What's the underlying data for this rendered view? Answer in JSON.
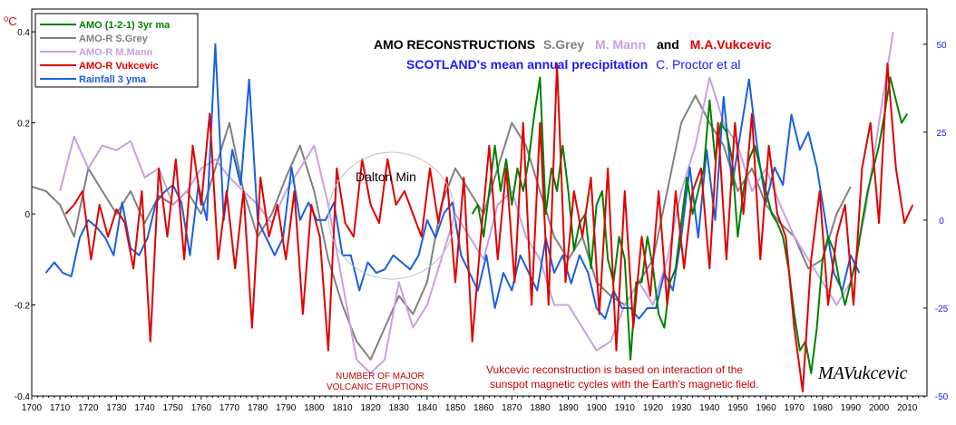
{
  "chart_data": {
    "type": "line",
    "title": {
      "parts": [
        {
          "text": "AMO RECONSTRUCTIONS",
          "color": "#000000"
        },
        {
          "text": "S.Grey",
          "color": "#808080"
        },
        {
          "text": "M. Mann",
          "color": "#c8a0e0"
        },
        {
          "text": "and",
          "color": "#000000"
        },
        {
          "text": "M.A.Vukcevic",
          "color": "#e00000"
        }
      ]
    },
    "subtitle": {
      "parts": [
        {
          "text": "SCOTLAND's mean annual precipitation",
          "color": "#1a1aff"
        },
        {
          "text": "C. Proctor et al",
          "color": "#1a1aff"
        }
      ]
    },
    "y_unit_label": "⁰C",
    "xlim": [
      1700,
      2017
    ],
    "ylim": [
      -0.4,
      0.45
    ],
    "ylim_right": [
      -50,
      60
    ],
    "x_ticks": [
      1700,
      1710,
      1720,
      1730,
      1740,
      1750,
      1760,
      1770,
      1780,
      1790,
      1800,
      1810,
      1820,
      1830,
      1840,
      1850,
      1860,
      1870,
      1880,
      1890,
      1900,
      1910,
      1920,
      1930,
      1940,
      1950,
      1960,
      1970,
      1980,
      1990,
      2000,
      2010
    ],
    "y_ticks": [
      -0.4,
      -0.2,
      0,
      0.2,
      0.4
    ],
    "y_tick_labels": [
      "-0.4",
      "-0.2",
      "0",
      "0.2",
      "0.4"
    ],
    "y_right_ticks": [
      -50,
      -25,
      0,
      25,
      50
    ],
    "y_right_tick_labels": [
      "-50",
      "-25",
      "0",
      "25",
      "50"
    ],
    "grid": false,
    "legend_position": "top-left",
    "series": [
      {
        "name": "AMO  (1-2-1) 3yr ma",
        "color": "#008000",
        "axis": "left",
        "x": [
          1856,
          1858,
          1860,
          1862,
          1864,
          1866,
          1868,
          1870,
          1872,
          1874,
          1876,
          1878,
          1880,
          1882,
          1884,
          1886,
          1888,
          1890,
          1892,
          1894,
          1896,
          1898,
          1900,
          1902,
          1904,
          1906,
          1908,
          1910,
          1912,
          1914,
          1916,
          1918,
          1920,
          1922,
          1924,
          1926,
          1928,
          1930,
          1932,
          1934,
          1936,
          1938,
          1940,
          1942,
          1944,
          1946,
          1948,
          1950,
          1952,
          1954,
          1956,
          1958,
          1960,
          1962,
          1964,
          1966,
          1968,
          1970,
          1972,
          1974,
          1976,
          1978,
          1980,
          1982,
          1984,
          1986,
          1988,
          1990,
          1992,
          1994,
          1996,
          1998,
          2000,
          2002,
          2004,
          2006,
          2008,
          2010
        ],
        "values": [
          0.0,
          0.02,
          -0.05,
          0.05,
          0.15,
          0.05,
          0.12,
          0.02,
          0.1,
          0.05,
          0.12,
          0.22,
          0.3,
          0.0,
          0.1,
          0.05,
          0.15,
          0.05,
          -0.08,
          -0.02,
          0.0,
          -0.12,
          0.02,
          0.05,
          -0.1,
          -0.15,
          -0.05,
          -0.1,
          -0.32,
          -0.15,
          -0.15,
          -0.05,
          -0.12,
          -0.22,
          -0.25,
          -0.15,
          -0.12,
          -0.02,
          0.08,
          0.0,
          0.05,
          0.1,
          0.25,
          0.12,
          0.2,
          0.18,
          0.12,
          -0.05,
          0.05,
          0.12,
          0.15,
          0.1,
          0.05,
          0.0,
          -0.02,
          -0.05,
          -0.12,
          -0.22,
          -0.3,
          -0.28,
          -0.35,
          -0.25,
          -0.1,
          -0.05,
          -0.08,
          -0.15,
          -0.2,
          -0.15,
          -0.1,
          -0.02,
          0.05,
          0.1,
          0.15,
          0.22,
          0.3,
          0.25,
          0.2,
          0.22
        ]
      },
      {
        "name": "AMO-R S.Grey",
        "color": "#808080",
        "axis": "left",
        "x": [
          1700,
          1705,
          1710,
          1715,
          1720,
          1725,
          1730,
          1735,
          1740,
          1745,
          1750,
          1755,
          1760,
          1765,
          1770,
          1775,
          1780,
          1785,
          1790,
          1795,
          1800,
          1805,
          1810,
          1815,
          1820,
          1825,
          1830,
          1835,
          1840,
          1845,
          1850,
          1855,
          1860,
          1865,
          1870,
          1875,
          1880,
          1885,
          1890,
          1895,
          1900,
          1905,
          1910,
          1915,
          1920,
          1925,
          1930,
          1935,
          1940,
          1945,
          1950,
          1955,
          1960,
          1965,
          1970,
          1975,
          1980,
          1985,
          1990
        ],
        "values": [
          0.06,
          0.05,
          0.02,
          -0.05,
          0.1,
          0.05,
          0.0,
          0.05,
          -0.02,
          0.04,
          0.02,
          0.05,
          0.0,
          0.1,
          0.2,
          0.05,
          -0.05,
          0.0,
          0.08,
          0.15,
          0.05,
          -0.1,
          -0.2,
          -0.28,
          -0.32,
          -0.25,
          -0.18,
          -0.22,
          -0.15,
          0.02,
          0.1,
          0.05,
          0.0,
          0.1,
          0.2,
          0.15,
          0.05,
          -0.05,
          -0.1,
          -0.05,
          -0.15,
          -0.18,
          -0.2,
          -0.15,
          -0.1,
          0.05,
          0.2,
          0.26,
          0.2,
          0.15,
          0.05,
          0.1,
          0.02,
          -0.02,
          -0.05,
          -0.12,
          -0.1,
          0.0,
          0.06
        ]
      },
      {
        "name": "AMO-R M.Mann",
        "color": "#c8a0e0",
        "axis": "left",
        "x": [
          1710,
          1715,
          1720,
          1725,
          1730,
          1735,
          1740,
          1745,
          1750,
          1755,
          1760,
          1765,
          1770,
          1775,
          1780,
          1785,
          1790,
          1795,
          1800,
          1805,
          1810,
          1815,
          1820,
          1825,
          1830,
          1835,
          1840,
          1845,
          1850,
          1855,
          1860,
          1865,
          1870,
          1875,
          1880,
          1885,
          1890,
          1895,
          1900,
          1905,
          1910,
          1915,
          1920,
          1925,
          1930,
          1935,
          1940,
          1945,
          1950,
          1955,
          1960,
          1965,
          1970,
          1975,
          1980,
          1985,
          1990,
          1995,
          2000,
          2005
        ],
        "values": [
          0.05,
          0.17,
          0.1,
          0.15,
          0.14,
          0.16,
          0.08,
          0.1,
          0.02,
          0.05,
          0.1,
          0.12,
          0.08,
          0.05,
          0.02,
          -0.02,
          0.05,
          0.1,
          0.15,
          0.02,
          -0.15,
          -0.32,
          -0.35,
          -0.32,
          -0.15,
          -0.25,
          -0.2,
          -0.1,
          0.0,
          -0.05,
          -0.1,
          0.02,
          0.05,
          -0.05,
          -0.1,
          -0.2,
          -0.2,
          -0.25,
          -0.3,
          -0.28,
          -0.2,
          -0.15,
          -0.2,
          -0.1,
          0.05,
          0.15,
          0.3,
          0.2,
          0.15,
          0.05,
          0.1,
          0.02,
          -0.05,
          -0.1,
          -0.15,
          -0.2,
          -0.15,
          0.0,
          0.2,
          0.4
        ]
      },
      {
        "name": "AMO-R Vukcevic",
        "color": "#e00000",
        "axis": "left",
        "x": [
          1712,
          1715,
          1718,
          1721,
          1724,
          1727,
          1730,
          1733,
          1736,
          1739,
          1742,
          1745,
          1748,
          1751,
          1754,
          1757,
          1760,
          1763,
          1766,
          1769,
          1772,
          1775,
          1778,
          1781,
          1784,
          1787,
          1790,
          1793,
          1796,
          1799,
          1802,
          1805,
          1808,
          1811,
          1814,
          1817,
          1820,
          1823,
          1826,
          1829,
          1832,
          1835,
          1838,
          1841,
          1844,
          1847,
          1850,
          1853,
          1856,
          1859,
          1862,
          1865,
          1868,
          1871,
          1874,
          1877,
          1880,
          1883,
          1886,
          1889,
          1892,
          1895,
          1898,
          1901,
          1904,
          1907,
          1910,
          1913,
          1916,
          1919,
          1922,
          1925,
          1928,
          1931,
          1934,
          1937,
          1940,
          1943,
          1946,
          1949,
          1952,
          1955,
          1958,
          1961,
          1964,
          1967,
          1970,
          1973,
          1976,
          1979,
          1982,
          1985,
          1988,
          1991,
          1994,
          1997,
          2000,
          2003,
          2006,
          2009,
          2012
        ],
        "values": [
          0.0,
          0.02,
          0.05,
          -0.1,
          0.02,
          -0.05,
          0.01,
          -0.02,
          -0.12,
          0.05,
          -0.28,
          0.1,
          -0.05,
          0.12,
          -0.1,
          0.15,
          0.02,
          0.22,
          -0.1,
          0.05,
          -0.12,
          0.05,
          -0.25,
          0.08,
          -0.05,
          0.02,
          -0.1,
          0.05,
          -0.22,
          0.02,
          -0.05,
          -0.3,
          0.1,
          -0.02,
          -0.05,
          0.12,
          0.02,
          -0.02,
          0.12,
          0.02,
          0.05,
          0.0,
          -0.05,
          0.1,
          -0.02,
          0.08,
          -0.15,
          0.08,
          -0.28,
          -0.05,
          0.15,
          -0.1,
          0.1,
          -0.15,
          0.2,
          -0.2,
          0.2,
          -0.2,
          0.33,
          -0.15,
          0.05,
          -0.05,
          0.08,
          -0.22,
          0.1,
          -0.3,
          0.05,
          -0.25,
          -0.05,
          -0.18,
          0.05,
          -0.2,
          0.05,
          -0.12,
          0.05,
          0.1,
          -0.12,
          0.2,
          -0.1,
          0.2,
          0.0,
          0.22,
          -0.1,
          0.15,
          0.0,
          -0.05,
          -0.25,
          -0.39,
          -0.1,
          0.05,
          -0.2,
          -0.05,
          0.02,
          -0.2,
          0.1,
          0.2,
          -0.02,
          0.33,
          0.1,
          -0.02,
          0.02
        ]
      },
      {
        "name": "Rainfall 3 yma",
        "color": "#1a5fe0",
        "axis": "right",
        "x": [
          1705,
          1708,
          1711,
          1714,
          1717,
          1720,
          1723,
          1726,
          1729,
          1732,
          1735,
          1738,
          1741,
          1744,
          1747,
          1750,
          1753,
          1756,
          1759,
          1762,
          1765,
          1768,
          1771,
          1774,
          1777,
          1780,
          1783,
          1786,
          1789,
          1792,
          1795,
          1798,
          1801,
          1804,
          1807,
          1810,
          1813,
          1816,
          1819,
          1822,
          1825,
          1828,
          1831,
          1834,
          1837,
          1840,
          1843,
          1846,
          1849,
          1852,
          1855,
          1858,
          1861,
          1864,
          1867,
          1870,
          1873,
          1876,
          1879,
          1882,
          1885,
          1888,
          1891,
          1894,
          1897,
          1900,
          1903,
          1906,
          1909,
          1912,
          1915,
          1918,
          1921,
          1924,
          1927,
          1930,
          1933,
          1936,
          1939,
          1942,
          1945,
          1948,
          1951,
          1954,
          1957,
          1960,
          1963,
          1966,
          1969,
          1972,
          1975,
          1978,
          1981,
          1984,
          1987,
          1990,
          1993
        ],
        "values": [
          -15,
          -12,
          -15,
          -16,
          -5,
          0,
          -2,
          -5,
          -10,
          5,
          -8,
          -10,
          -5,
          5,
          8,
          10,
          5,
          -10,
          10,
          0,
          50,
          0,
          20,
          10,
          40,
          0,
          -5,
          -10,
          -5,
          15,
          0,
          5,
          0,
          0,
          5,
          -10,
          -10,
          -20,
          -12,
          -15,
          -14,
          -10,
          -12,
          -14,
          -10,
          0,
          -5,
          2,
          5,
          -10,
          -15,
          -20,
          -10,
          -25,
          -15,
          -20,
          -10,
          -15,
          -20,
          -5,
          -15,
          -10,
          -18,
          -10,
          -15,
          -25,
          -28,
          -20,
          -25,
          -25,
          -28,
          -25,
          -25,
          -15,
          -20,
          -5,
          15,
          -5,
          20,
          0,
          35,
          10,
          25,
          40,
          20,
          5,
          15,
          10,
          30,
          20,
          25,
          15,
          0,
          -15,
          -20,
          -10,
          -15
        ]
      }
    ],
    "annotations": [
      {
        "text": "Dalton Min",
        "color": "#000000"
      },
      {
        "text": "NUMBER OF MAJOR",
        "color": "#cc0000"
      },
      {
        "text": "VOLCANIC ERUPTIONS",
        "color": "#cc0000"
      },
      {
        "text": "Vukcevic reconstruction is based on interaction of the",
        "color": "#cc0000"
      },
      {
        "text": "sunspot magnetic cycles with the Earth's magnetic field.",
        "color": "#cc0000"
      },
      {
        "text": "MAVukcevic",
        "color": "#000000"
      }
    ]
  }
}
